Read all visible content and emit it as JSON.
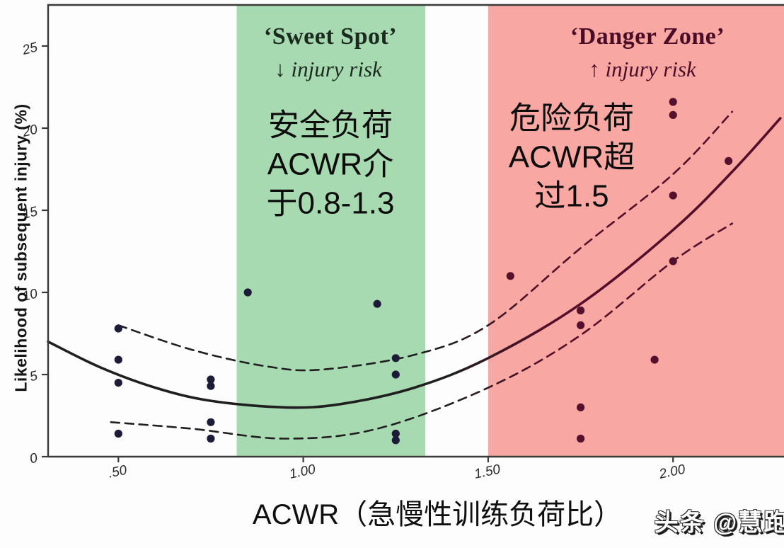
{
  "watermark": {
    "text": "头条 @慧跑"
  },
  "chart_data": {
    "type": "scatter",
    "title": "",
    "xlabel": "ACWR（急慢性训练负荷比）",
    "ylabel": "Likelihood of subsequent injury (%)",
    "x_domain": [
      0.31,
      2.3
    ],
    "y_domain": [
      0,
      27.5
    ],
    "grid": false,
    "x_ticks": [
      {
        "value": 0.5,
        "label": ".50"
      },
      {
        "value": 1.0,
        "label": "1.00"
      },
      {
        "value": 1.5,
        "label": "1.50"
      },
      {
        "value": 2.0,
        "label": "2.00"
      }
    ],
    "y_ticks": [
      {
        "value": 0,
        "label": "0"
      },
      {
        "value": 5,
        "label": "5"
      },
      {
        "value": 10,
        "label": "10"
      },
      {
        "value": 15,
        "label": "15"
      },
      {
        "value": 20,
        "label": "20"
      },
      {
        "value": 25,
        "label": "25"
      }
    ],
    "zones": [
      {
        "name": "sweet-spot",
        "x_from": 0.82,
        "x_to": 1.33,
        "color": "#a7dab0",
        "title": "‘Sweet Spot’",
        "subtitle": "↓ injury risk",
        "title_color": "#1b2a1f",
        "annotation_lines": [
          "安全负荷",
          "ACWR介",
          "于0.8-1.3"
        ]
      },
      {
        "name": "danger-zone",
        "x_from": 1.5,
        "x_to": 2.3,
        "color": "#f8a7a2",
        "title": "‘Danger Zone’",
        "subtitle": "↑ injury risk",
        "title_color": "#4a0c26",
        "annotation_lines": [
          "危险负荷",
          "ACWR超",
          "过1.5"
        ]
      }
    ],
    "series": [
      {
        "name": "fitted-risk-curve",
        "style": "solid",
        "points": [
          [
            0.31,
            7.0
          ],
          [
            0.45,
            5.45
          ],
          [
            0.6,
            4.2
          ],
          [
            0.75,
            3.4
          ],
          [
            0.95,
            3.0
          ],
          [
            1.1,
            3.2
          ],
          [
            1.3,
            4.2
          ],
          [
            1.5,
            6.0
          ],
          [
            1.75,
            9.3
          ],
          [
            2.0,
            13.8
          ],
          [
            2.16,
            17.35
          ],
          [
            2.29,
            20.6
          ]
        ]
      },
      {
        "name": "upper-confidence-band",
        "style": "dashed",
        "points": [
          [
            0.5,
            8.0
          ],
          [
            0.7,
            6.5
          ],
          [
            0.9,
            5.5
          ],
          [
            1.05,
            5.3
          ],
          [
            1.3,
            6.2
          ],
          [
            1.5,
            8.0
          ],
          [
            1.75,
            12.7
          ],
          [
            2.0,
            17.2
          ],
          [
            2.16,
            21.0
          ]
        ]
      },
      {
        "name": "lower-confidence-band",
        "style": "dashed",
        "points": [
          [
            0.48,
            2.1
          ],
          [
            0.7,
            1.7
          ],
          [
            0.95,
            1.1
          ],
          [
            1.2,
            1.7
          ],
          [
            1.5,
            4.2
          ],
          [
            1.75,
            7.4
          ],
          [
            2.0,
            11.9
          ],
          [
            2.16,
            14.2
          ]
        ]
      }
    ],
    "points": [
      [
        0.5,
        7.8
      ],
      [
        0.5,
        5.9
      ],
      [
        0.5,
        4.5
      ],
      [
        0.5,
        1.4
      ],
      [
        0.75,
        4.7
      ],
      [
        0.75,
        4.3
      ],
      [
        0.75,
        2.1
      ],
      [
        0.75,
        1.1
      ],
      [
        0.85,
        10.0
      ],
      [
        1.2,
        9.3
      ],
      [
        1.25,
        6.0
      ],
      [
        1.25,
        5.0
      ],
      [
        1.25,
        1.4
      ],
      [
        1.25,
        1.0
      ],
      [
        1.56,
        11.0
      ],
      [
        1.75,
        8.9
      ],
      [
        1.75,
        8.0
      ],
      [
        1.75,
        3.0
      ],
      [
        1.75,
        1.1
      ],
      [
        1.95,
        5.9
      ],
      [
        2.0,
        21.6
      ],
      [
        2.0,
        20.8
      ],
      [
        2.0,
        15.9
      ],
      [
        2.0,
        11.9
      ],
      [
        2.15,
        18.0
      ]
    ],
    "colors": {
      "point": "#1c1c38",
      "point_danger": "#55102b",
      "curve_left": "#1f1f1f",
      "curve_right": "#550e29",
      "frame": "#3a3a3a",
      "tick_text": "#2b2b2b"
    }
  }
}
